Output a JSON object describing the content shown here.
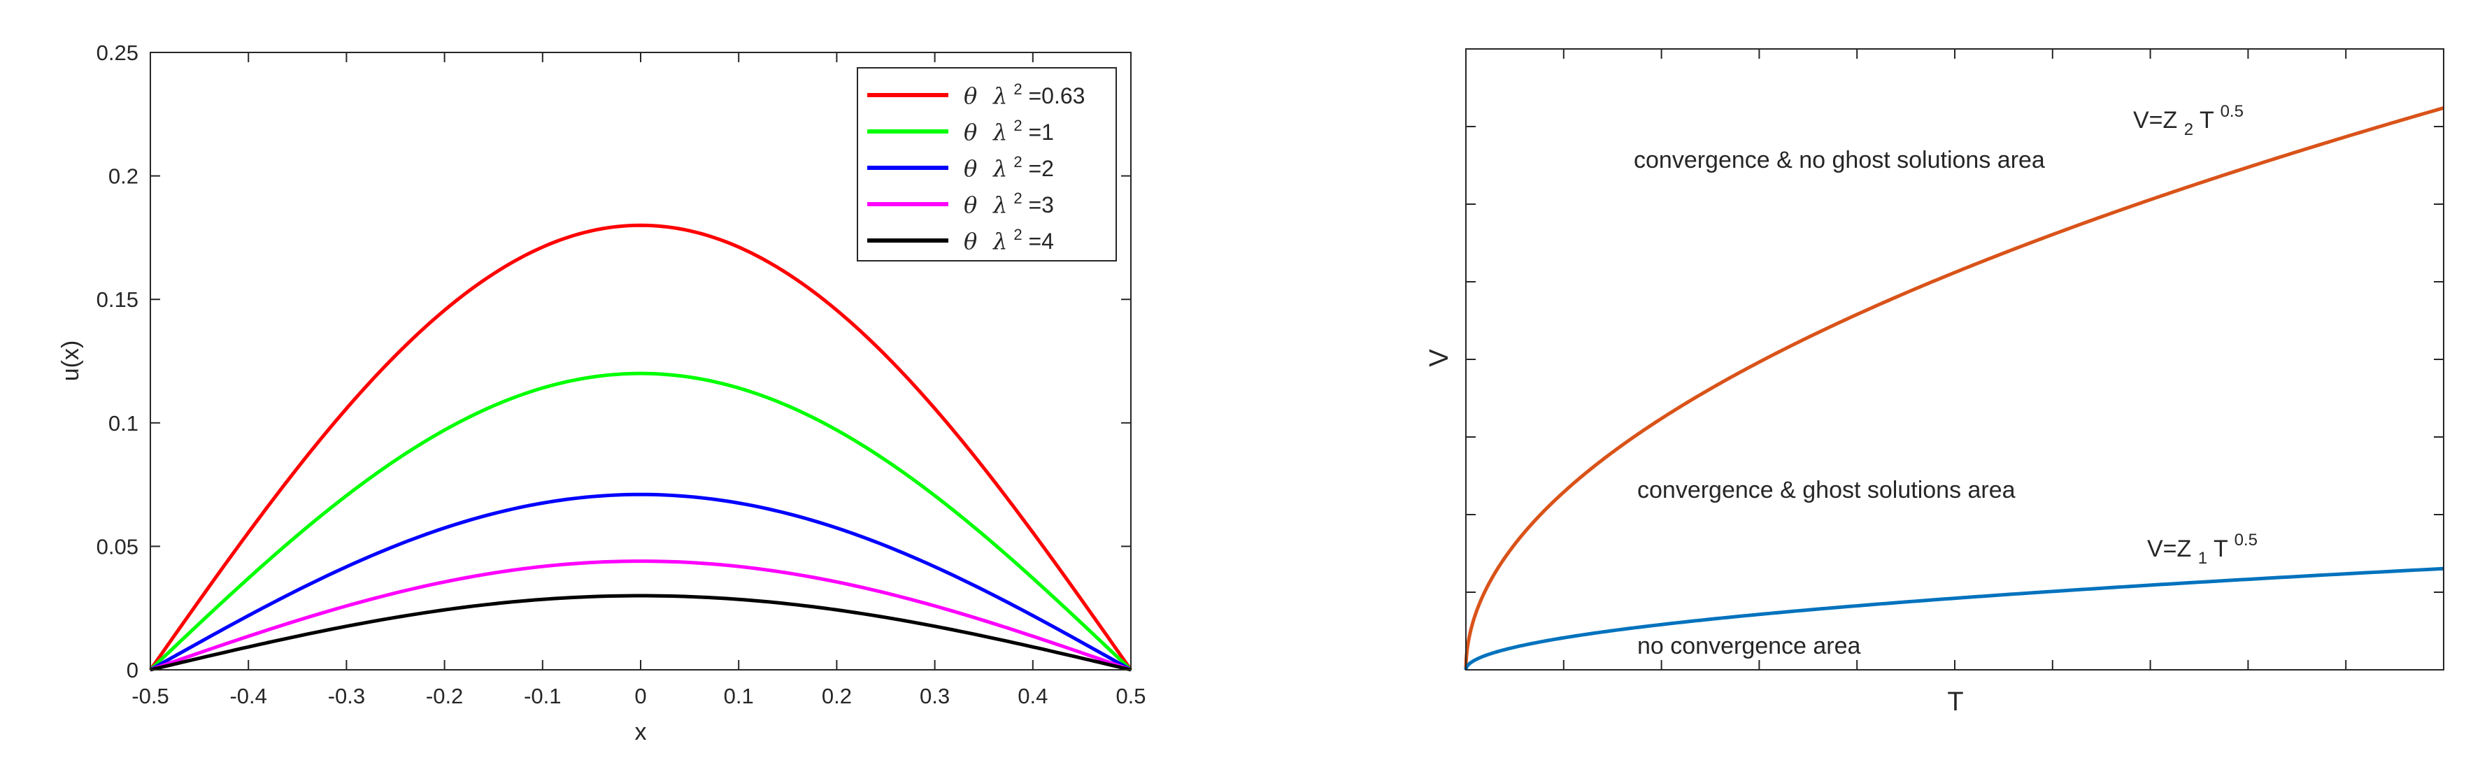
{
  "chart_data": [
    {
      "type": "line",
      "title": "",
      "xlabel": "x",
      "ylabel": "u(x)",
      "xlim": [
        -0.5,
        0.5
      ],
      "ylim": [
        0,
        0.25
      ],
      "xticks": [
        -0.5,
        -0.4,
        -0.3,
        -0.2,
        -0.1,
        0,
        0.1,
        0.2,
        0.3,
        0.4,
        0.5
      ],
      "xtick_labels": [
        "-0.5",
        "-0.4",
        "-0.3",
        "-0.2",
        "-0.1",
        "0",
        "0.1",
        "0.2",
        "0.3",
        "0.4",
        "0.5"
      ],
      "yticks": [
        0,
        0.05,
        0.1,
        0.15,
        0.2,
        0.25
      ],
      "ytick_labels": [
        "0",
        "0.05",
        "0.1",
        "0.15",
        "0.2",
        "0.25"
      ],
      "grid": false,
      "legend_position": "top-right",
      "series": [
        {
          "name": "θ λ²=0.63",
          "legend": {
            "theta": "θ",
            "lambda": "λ",
            "exp": "2",
            "value": "=0.63"
          },
          "color": "#ff0000",
          "peak": 0.18
        },
        {
          "name": "θ λ²=1",
          "legend": {
            "theta": "θ",
            "lambda": "λ",
            "exp": "2",
            "value": "=1"
          },
          "color": "#00ff00",
          "peak": 0.12
        },
        {
          "name": "θ λ²=2",
          "legend": {
            "theta": "θ",
            "lambda": "λ",
            "exp": "2",
            "value": "=2"
          },
          "color": "#0000ff",
          "peak": 0.071
        },
        {
          "name": "θ λ²=3",
          "legend": {
            "theta": "θ",
            "lambda": "λ",
            "exp": "2",
            "value": "=3"
          },
          "color": "#ff00ff",
          "peak": 0.044
        },
        {
          "name": "θ λ²=4",
          "legend": {
            "theta": "θ",
            "lambda": "λ",
            "exp": "2",
            "value": "=4"
          },
          "color": "#000000",
          "peak": 0.03
        }
      ]
    },
    {
      "type": "line",
      "title": "",
      "xlabel": "T",
      "ylabel": "V",
      "tick_labels_shown": false,
      "x_tick_count": 10,
      "y_tick_count": 8,
      "grid": false,
      "series": [
        {
          "name": "V=Z2 T0.5",
          "label": {
            "prefix": "V=Z",
            "sub": "2",
            "mid": " T",
            "sup": "0.5"
          },
          "color": "#d95319",
          "coefficient_fraction": 0.905,
          "exponent": 0.5
        },
        {
          "name": "V=Z1 T0.5",
          "label": {
            "prefix": "V=Z",
            "sub": "1",
            "mid": " T",
            "sup": "0.5"
          },
          "color": "#0072bd",
          "coefficient_fraction": 0.163,
          "exponent": 0.5
        }
      ],
      "annotations": [
        "convergence & no ghost solutions area",
        "convergence & ghost solutions area",
        "no convergence area"
      ]
    }
  ]
}
